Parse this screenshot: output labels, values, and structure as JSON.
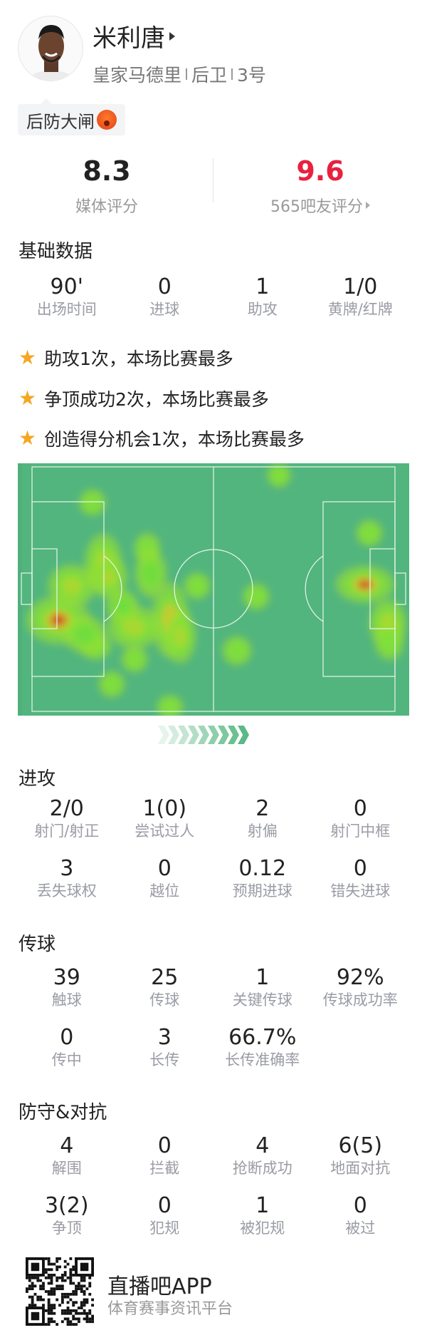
{
  "player": {
    "name": "米利唐",
    "team": "皇家马德里",
    "position": "后卫",
    "number": "3号",
    "tag": "后防大闸",
    "tag_icon": "angry-face-emoji"
  },
  "ratings": {
    "media": {
      "value": "8.3",
      "label": "媒体评分",
      "color": "#222222"
    },
    "fans": {
      "value": "9.6",
      "label": "565吧友评分",
      "color": "#e8213f"
    }
  },
  "basic": {
    "title": "基础数据",
    "stats": [
      {
        "v": "90'",
        "l": "出场时间"
      },
      {
        "v": "0",
        "l": "进球"
      },
      {
        "v": "1",
        "l": "助攻"
      },
      {
        "v": "1/0",
        "l": "黄牌/红牌"
      }
    ]
  },
  "highlights": [
    "助攻1次，本场比赛最多",
    "争顶成功2次，本场比赛最多",
    "创造得分机会1次，本场比赛最多"
  ],
  "heatmap": {
    "pitch_color": "#52b57e",
    "attack_direction": "right"
  },
  "attack": {
    "title": "进攻",
    "stats": [
      {
        "v": "2/0",
        "l": "射门/射正"
      },
      {
        "v": "1(0)",
        "l": "尝试过人"
      },
      {
        "v": "2",
        "l": "射偏"
      },
      {
        "v": "0",
        "l": "射门中框"
      },
      {
        "v": "3",
        "l": "丢失球权"
      },
      {
        "v": "0",
        "l": "越位"
      },
      {
        "v": "0.12",
        "l": "预期进球"
      },
      {
        "v": "0",
        "l": "错失进球"
      }
    ]
  },
  "passing": {
    "title": "传球",
    "stats": [
      {
        "v": "39",
        "l": "触球"
      },
      {
        "v": "25",
        "l": "传球"
      },
      {
        "v": "1",
        "l": "关键传球"
      },
      {
        "v": "92%",
        "l": "传球成功率"
      },
      {
        "v": "0",
        "l": "传中"
      },
      {
        "v": "3",
        "l": "长传"
      },
      {
        "v": "66.7%",
        "l": "长传准确率"
      }
    ]
  },
  "defense": {
    "title": "防守&对抗",
    "stats": [
      {
        "v": "4",
        "l": "解围"
      },
      {
        "v": "0",
        "l": "拦截"
      },
      {
        "v": "4",
        "l": "抢断成功"
      },
      {
        "v": "6(5)",
        "l": "地面对抗"
      },
      {
        "v": "3(2)",
        "l": "争顶"
      },
      {
        "v": "0",
        "l": "犯规"
      },
      {
        "v": "1",
        "l": "被犯规"
      },
      {
        "v": "0",
        "l": "被过"
      }
    ]
  },
  "footer": {
    "app": "直播吧APP",
    "slogan": "体育赛事资讯平台"
  }
}
